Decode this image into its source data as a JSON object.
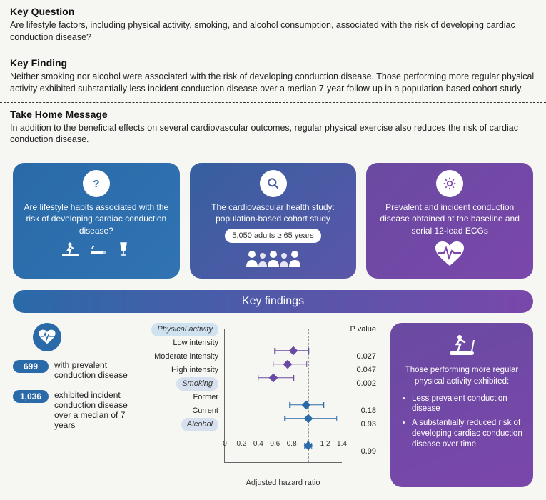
{
  "sections": {
    "keyQuestion": {
      "title": "Key Question",
      "text": "Are lifestyle factors, including physical activity, smoking, and alcohol consumption, associated with the risk of developing cardiac conduction disease?"
    },
    "keyFinding": {
      "title": "Key Finding",
      "text": "Neither smoking nor alcohol were associated with the risk of developing conduction disease. Those performing more regular physical activity exhibited substantially less incident conduction disease over a median 7-year follow-up in a population-based cohort study."
    },
    "takeHome": {
      "title": "Take Home Message",
      "text": "In addition to the beneficial effects on several cardiovascular outcomes, regular physical exercise also reduces the risk of cardiac conduction disease."
    }
  },
  "cards": {
    "c1": {
      "text": "Are lifestyle habits associated with the risk of developing cardiac conduction disease?"
    },
    "c2": {
      "text": "The cardiovascular health study: population-based cohort study",
      "pill": "5,050 adults ≥ 65 years"
    },
    "c3": {
      "text": "Prevalent and incident conduction disease obtained at the baseline and serial 12-lead ECGs"
    }
  },
  "bandTitle": "Key findings",
  "stats": {
    "s1": {
      "n": "699",
      "text": "with prevalent conduction disease"
    },
    "s2": {
      "n": "1,036",
      "text": "exhibited incident conduction disease over a median of 7 years"
    }
  },
  "forest": {
    "xlabel": "Adjusted hazard ratio",
    "pheader": "P value",
    "xmin": 0,
    "xmax": 1.4,
    "ref": 1.0,
    "ticks": [
      0,
      0.2,
      0.4,
      0.6,
      0.8,
      1,
      1.2,
      1.4
    ],
    "colors": {
      "pa": "#6a4aa2",
      "other": "#2a6aa8",
      "axis": "#666",
      "ref": "#aaaaaa"
    },
    "rows": [
      {
        "type": "group",
        "label": "Physical activity",
        "cls": "grp"
      },
      {
        "type": "data",
        "label": "Low intensity",
        "hr": 0.82,
        "lo": 0.6,
        "hi": 1.0,
        "p": "0.027",
        "color": "pa"
      },
      {
        "type": "data",
        "label": "Moderate intensity",
        "hr": 0.75,
        "lo": 0.58,
        "hi": 0.98,
        "p": "0.047",
        "color": "pa"
      },
      {
        "type": "data",
        "label": "High intensity",
        "hr": 0.58,
        "lo": 0.4,
        "hi": 0.82,
        "p": "0.002",
        "color": "pa"
      },
      {
        "type": "group",
        "label": "Smoking",
        "cls": "grp grpA"
      },
      {
        "type": "data",
        "label": "Former",
        "hr": 0.97,
        "lo": 0.78,
        "hi": 1.18,
        "p": "0.18",
        "color": "other"
      },
      {
        "type": "data",
        "label": "Current",
        "hr": 1.0,
        "lo": 0.72,
        "hi": 1.34,
        "p": "0.93",
        "color": "other"
      },
      {
        "type": "group",
        "label": "Alcohol",
        "cls": "grp grpA"
      },
      {
        "type": "data",
        "label": "",
        "hr": 1.0,
        "lo": 0.96,
        "hi": 1.04,
        "p": "0.99",
        "color": "other"
      }
    ]
  },
  "rightPanel": {
    "lead": "Those performing more regular physical activity exhibited:",
    "bullets": [
      "Less prevalent conduction disease",
      "A substantially reduced risk of developing cardiac conduction disease over time"
    ]
  },
  "palette": {
    "blue": "#2a6aa8",
    "purple": "#7a47aa",
    "bg": "#f6f7f3"
  }
}
